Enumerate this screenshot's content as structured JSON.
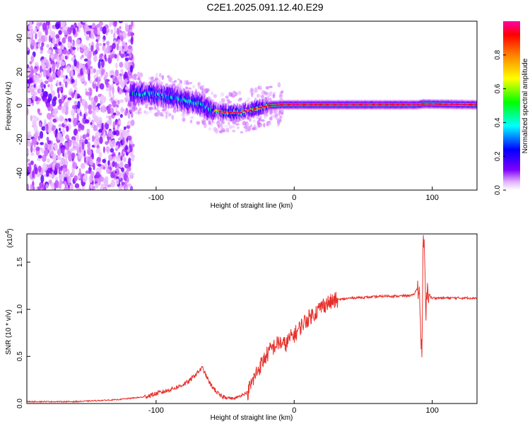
{
  "title": "C2E1.2025.091.12.40.E29",
  "chart_data": [
    {
      "type": "heatmap",
      "xlabel": "Height of straight line (km)",
      "ylabel": "Frequency (Hz)",
      "xlim": [
        -195,
        131
      ],
      "ylim": [
        -50,
        50
      ],
      "xticks": [
        "-100",
        "0",
        "100"
      ],
      "xtick_values": [
        -100,
        0,
        100
      ],
      "yticks": [
        "-40",
        "-20",
        "0",
        "20",
        "40"
      ],
      "ytick_values": [
        -40,
        -20,
        0,
        20,
        40
      ],
      "colorbar": {
        "label": "Normalized spectral amplitude",
        "ticks": [
          "0.0",
          "0.2",
          "0.4",
          "0.6",
          "0.8"
        ],
        "tick_values": [
          0.0,
          0.2,
          0.4,
          0.6,
          0.8
        ],
        "range": [
          0,
          1
        ],
        "colors": [
          "#ffffff",
          "#cc66ff",
          "#8000ff",
          "#0000ff",
          "#00ffff",
          "#00ff00",
          "#ffff00",
          "#ff8000",
          "#ff0000",
          "#ff00aa"
        ]
      },
      "ridge": [
        {
          "x": -120,
          "y": 7
        },
        {
          "x": -105,
          "y": 7
        },
        {
          "x": -90,
          "y": 5
        },
        {
          "x": -80,
          "y": 3
        },
        {
          "x": -70,
          "y": 1
        },
        {
          "x": -60,
          "y": -3
        },
        {
          "x": -50,
          "y": -4
        },
        {
          "x": -40,
          "y": -4
        },
        {
          "x": -30,
          "y": -2
        },
        {
          "x": -20,
          "y": 0
        },
        {
          "x": -10,
          "y": 0.5
        },
        {
          "x": 0,
          "y": 0.5
        },
        {
          "x": 50,
          "y": 0.5
        },
        {
          "x": 88,
          "y": 0.5
        },
        {
          "x": 92,
          "y": 1
        },
        {
          "x": 131,
          "y": 0.5
        }
      ]
    },
    {
      "type": "line",
      "xlabel": "Height of straight line (km)",
      "ylabel": "SNR (10 * v/v)",
      "exponent_label": "(x10",
      "exponent": "4",
      "exponent_close": ")",
      "xlim": [
        -195,
        131
      ],
      "ylim": [
        0,
        1.8
      ],
      "xticks": [
        "-100",
        "0",
        "100"
      ],
      "xtick_values": [
        -100,
        0,
        100
      ],
      "yticks": [
        "0.0",
        "0.5",
        "1.0",
        "1.5"
      ],
      "ytick_values": [
        0.0,
        0.5,
        1.0,
        1.5
      ],
      "color": "#e8302a",
      "series": [
        {
          "x": [
            -195,
            -160,
            -130,
            -110,
            -95,
            -85,
            -78,
            -72,
            -68,
            -62,
            -55,
            -45,
            -35,
            -28,
            -25,
            -22,
            -18,
            -12,
            -8,
            -4,
            0,
            5,
            10,
            15,
            20,
            30,
            40,
            55,
            65,
            75,
            85,
            89,
            91,
            92,
            93,
            94,
            95,
            98,
            105,
            115,
            131
          ],
          "y": [
            0.02,
            0.02,
            0.04,
            0.07,
            0.13,
            0.18,
            0.23,
            0.32,
            0.38,
            0.2,
            0.08,
            0.05,
            0.12,
            0.35,
            0.42,
            0.5,
            0.58,
            0.65,
            0.62,
            0.7,
            0.75,
            0.85,
            0.92,
            0.98,
            1.05,
            1.1,
            1.12,
            1.13,
            1.14,
            1.14,
            1.15,
            1.25,
            0.5,
            1.7,
            1.6,
            0.9,
            1.2,
            1.12,
            1.12,
            1.12,
            1.12
          ]
        }
      ]
    }
  ]
}
